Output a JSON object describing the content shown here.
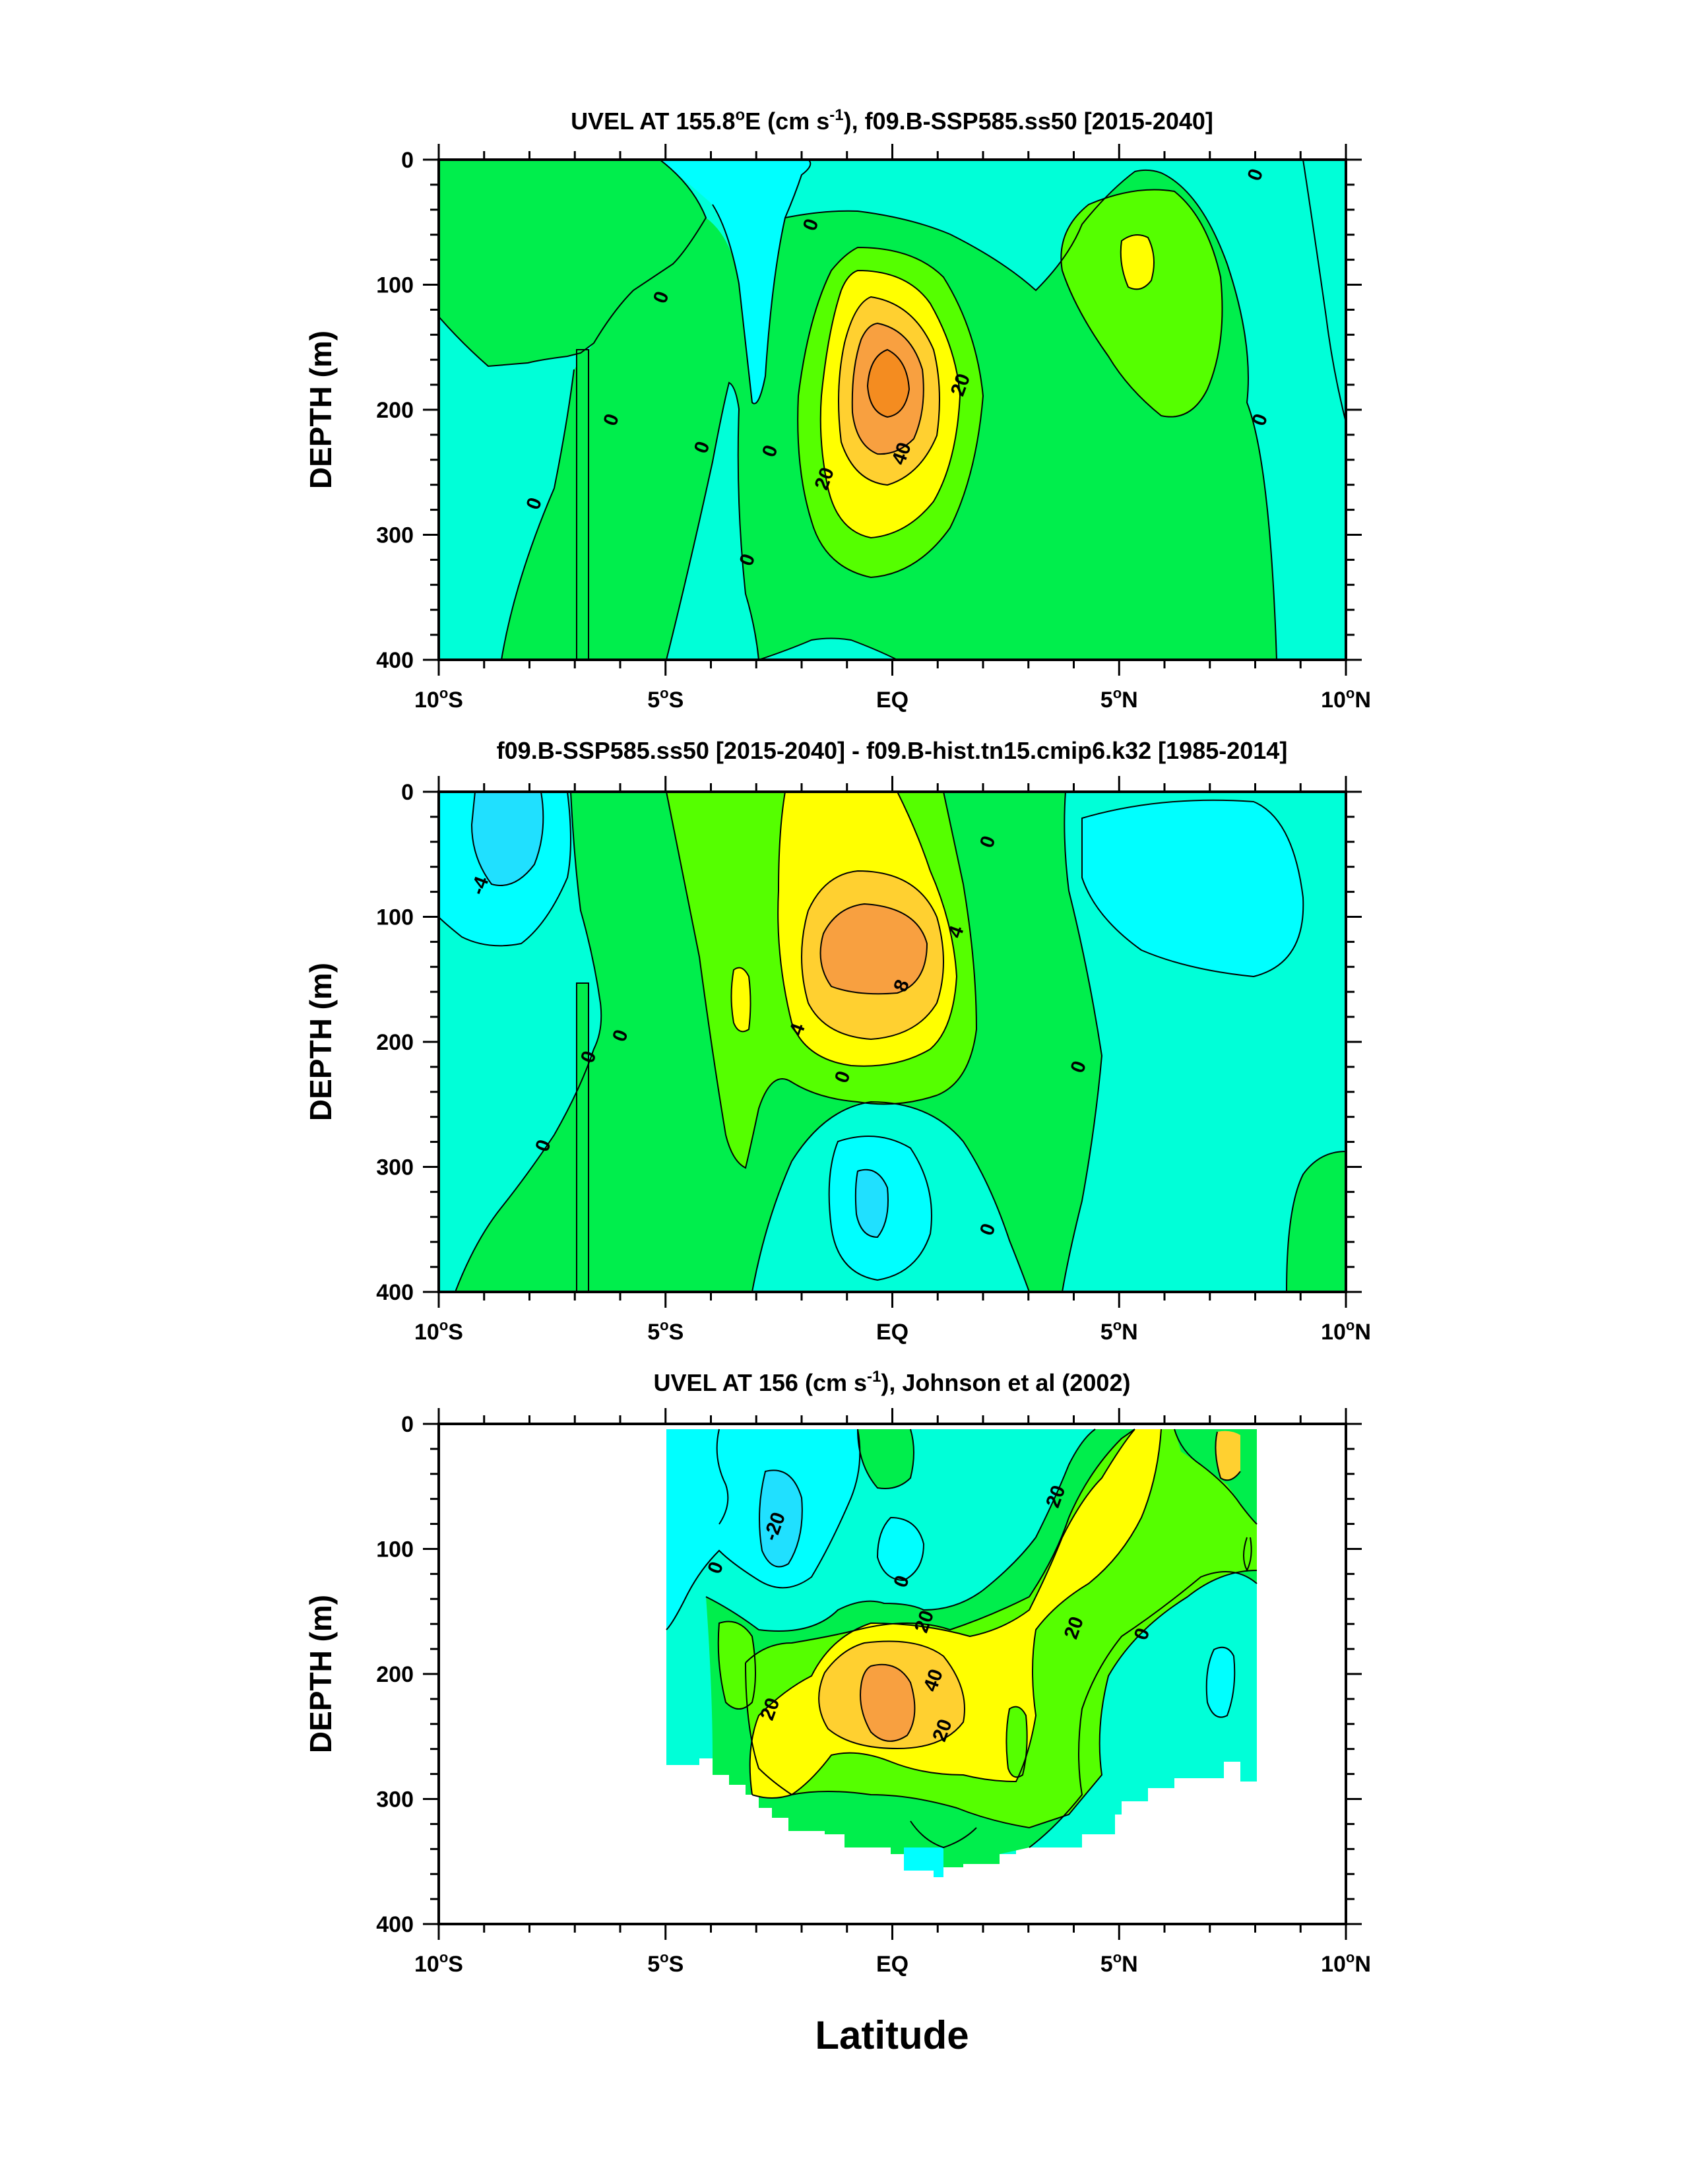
{
  "colors": {
    "cyan": "#00ffff",
    "aqua": "#00ffd8",
    "green_light": "#00ee4c",
    "green_bright": "#55ff00",
    "yellow": "#ffff00",
    "gold": "#ffd030",
    "orange": "#f8a040",
    "orange_dark": "#f48c20",
    "blue_cyan": "#20e0ff"
  },
  "chart_data": [
    {
      "type": "contour",
      "title_main": "UVEL AT 155.8",
      "title_deg": "o",
      "title_mid": "E (cm s",
      "title_sup": "-1",
      "title_end": "), f09.B-SSP585.ss50 [2015-2040]",
      "ylabel": "DEPTH (m)",
      "x_ticks": [
        "10°S",
        "5°S",
        "EQ",
        "5°N",
        "10°N"
      ],
      "y_ticks": [
        "0",
        "100",
        "200",
        "300",
        "400"
      ],
      "xlim": [
        -10,
        10
      ],
      "ylim": [
        0,
        400
      ],
      "contour_labels": [
        {
          "text": "0",
          "lat": -5.1,
          "depth": 110
        },
        {
          "text": "0",
          "lat": -1.8,
          "depth": 52
        },
        {
          "text": "0",
          "lat": 8.0,
          "depth": 12
        },
        {
          "text": "0",
          "lat": -6.2,
          "depth": 208
        },
        {
          "text": "0",
          "lat": -4.2,
          "depth": 230
        },
        {
          "text": "0",
          "lat": -2.7,
          "depth": 233
        },
        {
          "text": "0",
          "lat": -7.9,
          "depth": 275
        },
        {
          "text": "0",
          "lat": -3.2,
          "depth": 320
        },
        {
          "text": "0",
          "lat": 8.1,
          "depth": 208
        },
        {
          "text": "20",
          "lat": 1.5,
          "depth": 180
        },
        {
          "text": "20",
          "lat": -1.5,
          "depth": 255
        },
        {
          "text": "40",
          "lat": 0.2,
          "depth": 235
        }
      ]
    },
    {
      "type": "contour",
      "title": "f09.B-SSP585.ss50 [2015-2040] - f09.B-hist.tn15.cmip6.k32 [1985-2014]",
      "ylabel": "DEPTH (m)",
      "x_ticks": [
        "10°S",
        "5°S",
        "EQ",
        "5°N",
        "10°N"
      ],
      "y_ticks": [
        "0",
        "100",
        "200",
        "300",
        "400"
      ],
      "xlim": [
        -10,
        10
      ],
      "ylim": [
        0,
        400
      ],
      "contour_labels": [
        {
          "text": "-4",
          "lat": -9.1,
          "depth": 75
        },
        {
          "text": "0",
          "lat": 2.1,
          "depth": 40
        },
        {
          "text": "4",
          "lat": 1.4,
          "depth": 112
        },
        {
          "text": "8",
          "lat": 0.2,
          "depth": 155
        },
        {
          "text": "4",
          "lat": -2.1,
          "depth": 190
        },
        {
          "text": "0",
          "lat": -6.0,
          "depth": 195
        },
        {
          "text": "0",
          "lat": -6.7,
          "depth": 212
        },
        {
          "text": "0",
          "lat": -1.1,
          "depth": 228
        },
        {
          "text": "0",
          "lat": 4.1,
          "depth": 220
        },
        {
          "text": "0",
          "lat": -7.7,
          "depth": 283
        },
        {
          "text": "0",
          "lat": 2.1,
          "depth": 350
        }
      ]
    },
    {
      "type": "contour",
      "title_main": "UVEL AT 156 (cm s",
      "title_sup": "-1",
      "title_end": "), Johnson et al (2002)",
      "ylabel": "DEPTH (m)",
      "xlabel": "Latitude",
      "x_ticks": [
        "10°S",
        "5°S",
        "EQ",
        "5°N",
        "10°N"
      ],
      "y_ticks": [
        "0",
        "100",
        "200",
        "300",
        "400"
      ],
      "xlim": [
        -10,
        10
      ],
      "ylim": [
        0,
        400
      ],
      "data_extent_lat": [
        -5,
        8
      ],
      "contour_labels": [
        {
          "text": "-20",
          "lat": -2.6,
          "depth": 82
        },
        {
          "text": "20",
          "lat": 3.6,
          "depth": 58
        },
        {
          "text": "0",
          "lat": -3.9,
          "depth": 115
        },
        {
          "text": "0",
          "lat": 0.2,
          "depth": 126
        },
        {
          "text": "20",
          "lat": 0.7,
          "depth": 158
        },
        {
          "text": "20",
          "lat": 4.0,
          "depth": 163
        },
        {
          "text": "0",
          "lat": 5.5,
          "depth": 168
        },
        {
          "text": "40",
          "lat": 0.9,
          "depth": 205
        },
        {
          "text": "20",
          "lat": -2.7,
          "depth": 228
        },
        {
          "text": "20",
          "lat": 1.1,
          "depth": 245
        }
      ]
    }
  ]
}
